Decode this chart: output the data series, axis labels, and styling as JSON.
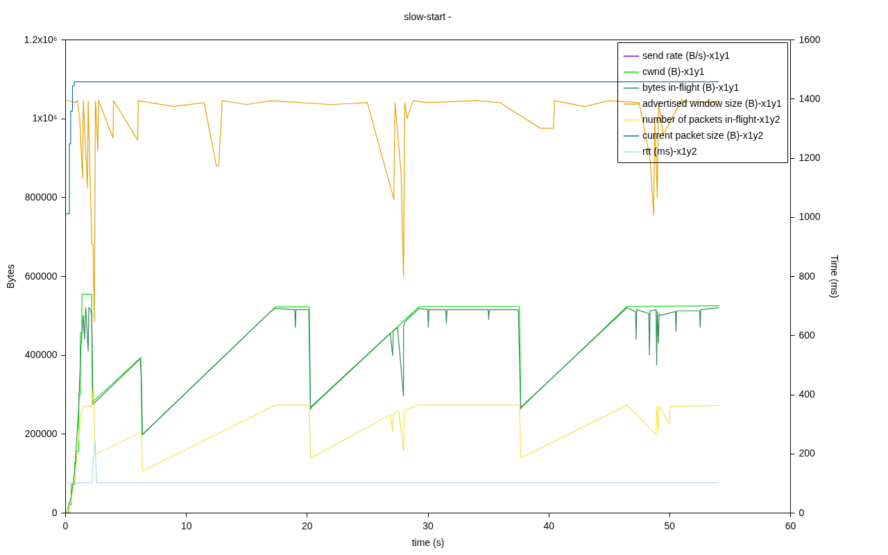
{
  "chart_data": {
    "type": "line",
    "title": "slow-start -",
    "xlabel": "time (s)",
    "ylabel": "Bytes",
    "y2label": "Time (ms)",
    "xlim": [
      0,
      60
    ],
    "xticks": [
      0,
      10,
      20,
      30,
      40,
      50,
      60
    ],
    "ylim": [
      0,
      1200000
    ],
    "yticks": [
      0,
      200000,
      400000,
      600000,
      800000,
      {
        "value": 1000000,
        "label": "1x10⁶"
      },
      {
        "value": 1200000,
        "label": "1.2x10⁶"
      }
    ],
    "y2lim": [
      0,
      1600
    ],
    "y2ticks": [
      0,
      200,
      400,
      600,
      800,
      1000,
      1200,
      1400,
      1600
    ],
    "grid": false,
    "legend": "top right",
    "marker": "none",
    "line_style": "solid",
    "series": [
      {
        "name": "send rate (B/s)-x1y1",
        "color": "#9400d3"
      },
      {
        "name": "cwnd (B)-x1y1",
        "color": "#00e000",
        "x": [
          0.07,
          0.3,
          0.3,
          0.5,
          0.5,
          0.79,
          0.79,
          0.9,
          0.9,
          1.13,
          1.13,
          1.25,
          1.25,
          1.38,
          1.38,
          2.18,
          2.25,
          6.26,
          6.35,
          17.4,
          20.2,
          20.3,
          29.3,
          37.6,
          37.7,
          46.5,
          54.1
        ],
        "values": [
          0,
          0,
          20000,
          20000,
          72000,
          72000,
          127000,
          127000,
          155000,
          155000,
          299000,
          299000,
          456000,
          456000,
          554000,
          554000,
          280000,
          394000,
          197000,
          522000,
          522000,
          265000,
          523000,
          523000,
          265000,
          523000,
          525000
        ]
      },
      {
        "name": "bytes in-flight (B)-x1y1",
        "color": "#2e8b57",
        "x": [
          0.1,
          0.5,
          0.8,
          1.1,
          1.3,
          1.5,
          1.6,
          1.7,
          1.9,
          1.95,
          2.1,
          2.2,
          2.3,
          6.2,
          6.3,
          6.4,
          17.0,
          17.4,
          19.0,
          19.05,
          19.1,
          20.15,
          20.3,
          20.4,
          26.9,
          27.1,
          27.15,
          27.5,
          28.0,
          28.0,
          28.05,
          28.3,
          29.3,
          30.0,
          30.05,
          30.1,
          31.5,
          31.55,
          31.6,
          35.0,
          35.05,
          35.1,
          37.5,
          37.7,
          37.8,
          46.5,
          47.2,
          47.25,
          47.3,
          48.3,
          48.35,
          48.4,
          48.9,
          48.95,
          49.0,
          49.1,
          49.15,
          49.2,
          50.5,
          50.55,
          50.6,
          52.5,
          52.55,
          52.6,
          54.1
        ],
        "values": [
          0,
          40000,
          110000,
          260000,
          420000,
          500000,
          440000,
          520000,
          410000,
          520000,
          515000,
          500000,
          275000,
          390000,
          340000,
          198000,
          510000,
          518000,
          515000,
          470000,
          515000,
          515000,
          262000,
          270000,
          455000,
          398000,
          460000,
          470000,
          296000,
          470000,
          480000,
          490000,
          518000,
          515000,
          470000,
          515000,
          515000,
          480000,
          515000,
          515000,
          490000,
          515000,
          515000,
          263000,
          270000,
          520000,
          510000,
          440000,
          515000,
          505000,
          400000,
          512000,
          515000,
          375000,
          510000,
          430000,
          505000,
          500000,
          510000,
          460000,
          512000,
          512000,
          470000,
          515000,
          520000
        ]
      },
      {
        "name": "advertised window size (B)-x1y1",
        "color": "#e69f00",
        "x": [
          0,
          0.8,
          1.0,
          1.2,
          1.43,
          1.5,
          1.84,
          1.9,
          2.2,
          2.3,
          2.41,
          2.5,
          2.7,
          2.75,
          3.96,
          4.0,
          6.0,
          6.05,
          9.0,
          11.5,
          12.0,
          12.5,
          12.7,
          13.0,
          15.0,
          17.0,
          22.0,
          25.0,
          27.2,
          27.3,
          27.8,
          28.0,
          28.1,
          28.3,
          28.8,
          30.0,
          34.0,
          36.0,
          39.3,
          39.8,
          40.4,
          40.5,
          43.0,
          45.0,
          47.5,
          48.4,
          48.7,
          48.8,
          49.0,
          49.1,
          49.5,
          51.0,
          53.5,
          54.1
        ],
        "values": [
          1047000,
          1040000,
          1045000,
          1000000,
          848000,
          1045000,
          824000,
          1045000,
          680000,
          680000,
          484000,
          1045000,
          917000,
          1045000,
          950000,
          1045000,
          945000,
          1045000,
          1030000,
          1040000,
          960000,
          880000,
          880000,
          1045000,
          1035000,
          1045000,
          1035000,
          1040000,
          795000,
          1040000,
          860000,
          598000,
          1040000,
          1000000,
          1045000,
          1040000,
          1045000,
          1040000,
          975000,
          975000,
          975000,
          1045000,
          1030000,
          1045000,
          1040000,
          900000,
          755000,
          1000000,
          800000,
          1040000,
          960000,
          1045000,
          1040000,
          1045000
        ]
      },
      {
        "name": "number of packets in-flight-x1y2",
        "axis": "y2",
        "color": "#f0e442",
        "x": [
          0.1,
          0.5,
          0.8,
          1.1,
          1.3,
          1.5,
          2.2,
          2.35,
          2.45,
          2.5,
          6.3,
          6.4,
          17.4,
          20.2,
          20.3,
          26.9,
          27.1,
          27.15,
          27.6,
          28.0,
          28.05,
          28.3,
          29.3,
          37.6,
          37.7,
          46.5,
          48.9,
          48.95,
          49.1,
          49.15,
          50.0,
          50.05,
          54.1
        ],
        "values": [
          0,
          40,
          120,
          250,
          330,
          360,
          360,
          430,
          250,
          197,
          272,
          141,
          364,
          364,
          185,
          330,
          274,
          335,
          345,
          209,
          345,
          350,
          364,
          364,
          185,
          364,
          263,
          360,
          279,
          360,
          300,
          360,
          362
        ]
      },
      {
        "name": "current packet size (B)-x1y2",
        "axis": "y2",
        "color": "#0072b2",
        "x": [
          0,
          0.35,
          0.35,
          0.45,
          0.45,
          0.6,
          0.6,
          0.75,
          0.75,
          0.9,
          54.1
        ],
        "values": [
          1011,
          1011,
          1248,
          1248,
          1358,
          1358,
          1443,
          1443,
          1457,
          1457,
          1457
        ]
      },
      {
        "name": "rtt (ms)-x1y2",
        "axis": "y2",
        "color": "#add8e6",
        "x": [
          0,
          2.2,
          2.3,
          2.47,
          2.6,
          54.1
        ],
        "values": [
          101,
          101,
          169,
          239,
          101,
          101
        ]
      }
    ]
  }
}
